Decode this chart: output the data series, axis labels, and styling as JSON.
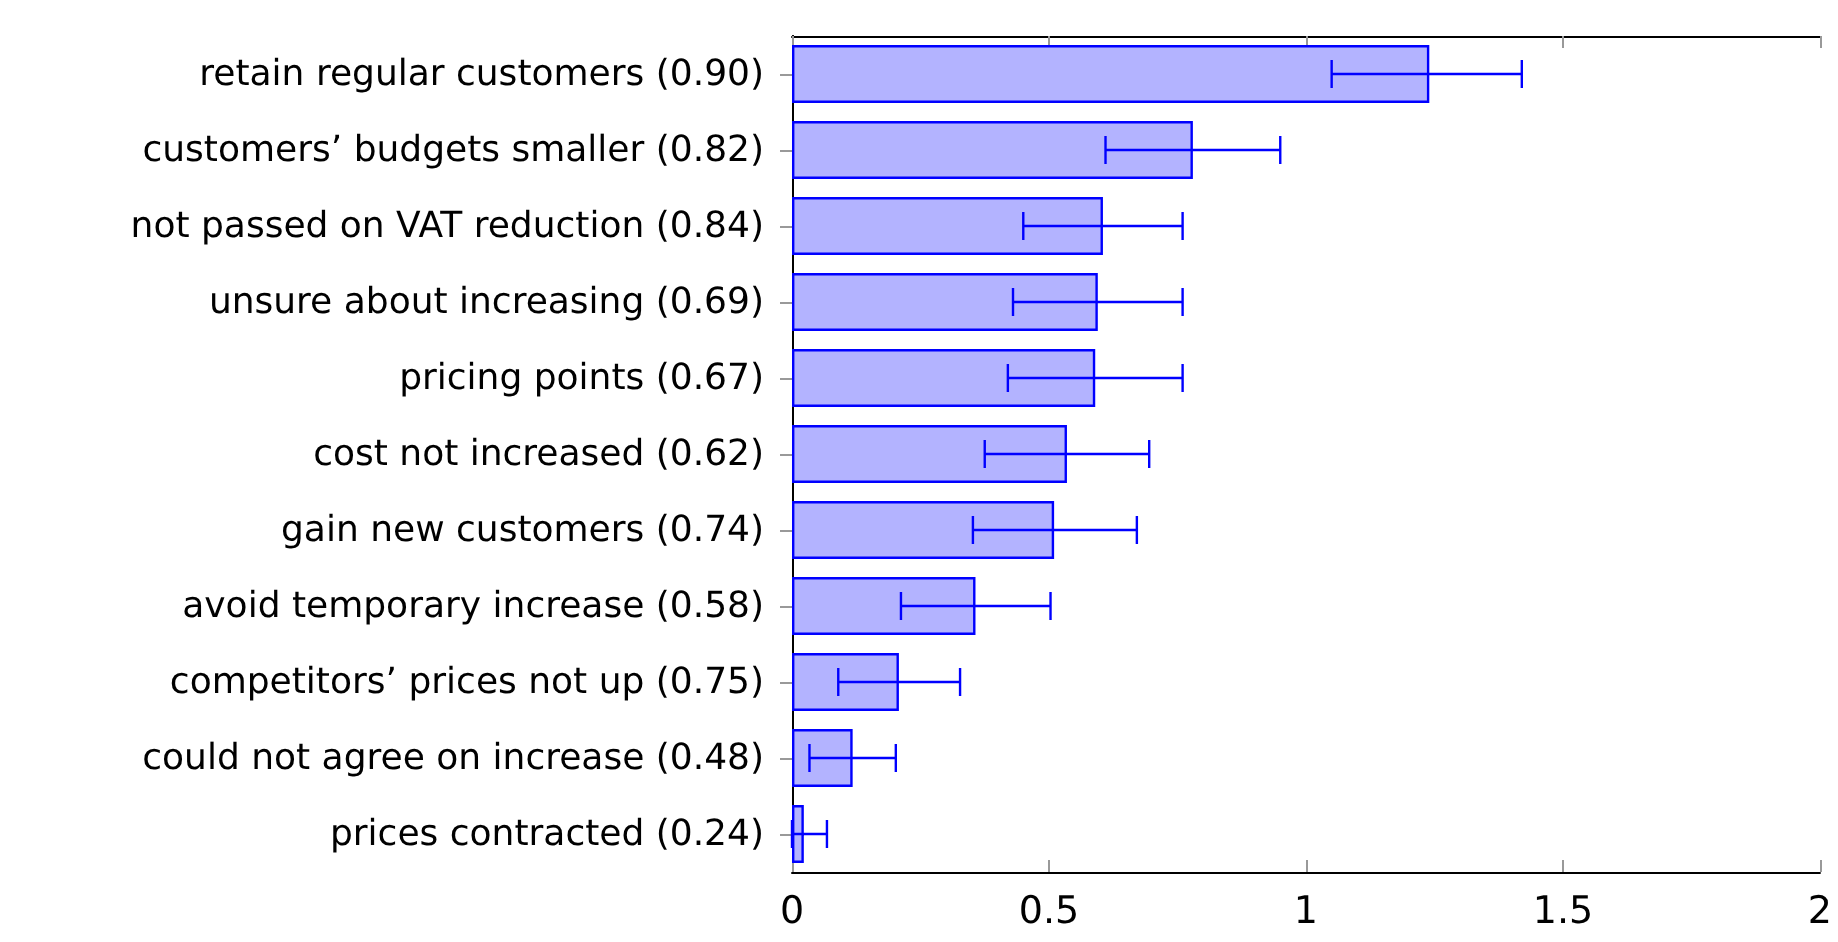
{
  "chart_data": {
    "type": "bar",
    "orientation": "horizontal",
    "categories": [
      "retain regular customers (0.90)",
      "customers’ budgets smaller (0.82)",
      "not passed on VAT reduction (0.84)",
      "unsure about increasing (0.69)",
      "pricing points (0.67)",
      "cost not increased (0.62)",
      "gain new customers (0.74)",
      "avoid temporary increase (0.58)",
      "competitors’ prices not up (0.75)",
      "could not agree on increase (0.48)",
      "prices contracted (0.24)"
    ],
    "values": [
      1.24,
      0.78,
      0.605,
      0.595,
      0.59,
      0.535,
      0.51,
      0.357,
      0.208,
      0.118,
      0.023
    ],
    "errors": [
      [
        1.05,
        1.42
      ],
      [
        0.61,
        0.95
      ],
      [
        0.45,
        0.76
      ],
      [
        0.43,
        0.76
      ],
      [
        0.42,
        0.76
      ],
      [
        0.375,
        0.695
      ],
      [
        0.352,
        0.671
      ],
      [
        0.212,
        0.503
      ],
      [
        0.09,
        0.327
      ],
      [
        0.034,
        0.202
      ],
      [
        0.0,
        0.068
      ]
    ],
    "color": "#b3b3ff",
    "xlim": [
      0,
      2
    ],
    "xticks": [
      0,
      0.5,
      1,
      1.5,
      2
    ],
    "grid": false
  }
}
